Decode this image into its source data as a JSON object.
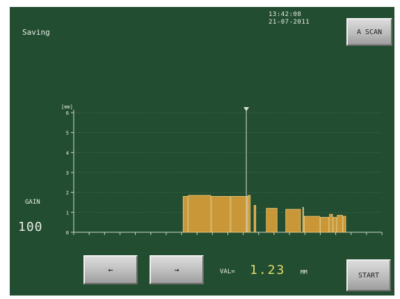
{
  "status": "Saving",
  "clock": {
    "time": "13:42:08",
    "date": "21-07-2011"
  },
  "buttons": {
    "ascan": "A SCAN",
    "start": "START",
    "left_arrow": "←",
    "right_arrow": "→"
  },
  "gain": {
    "label": "GAIN",
    "value": "100"
  },
  "reading": {
    "label": "VAL=",
    "value": "1.23",
    "unit": "MM"
  },
  "icons": {
    "cursor": "cursor-marker-icon"
  },
  "colors": {
    "screen_bg": "#234d31",
    "bar_fill": "#c99638",
    "bar_edge": "#f0cf7c",
    "text": "#e9eee7",
    "value_text": "#e3dc68"
  },
  "chart_data": {
    "type": "bar",
    "ylabel": "[mm]",
    "ylim": [
      0,
      6
    ],
    "yticks": [
      "0",
      "1",
      "2",
      "3",
      "4",
      "5",
      "6"
    ],
    "xlim": [
      0,
      100
    ],
    "grid": true,
    "cursor_x": 56,
    "segments": [
      {
        "x0": 35.5,
        "x1": 37.2,
        "value": 1.8
      },
      {
        "x0": 37.2,
        "x1": 44.7,
        "value": 1.85
      },
      {
        "x0": 44.7,
        "x1": 51.0,
        "value": 1.8
      },
      {
        "x0": 51.0,
        "x1": 56.5,
        "value": 1.8
      },
      {
        "x0": 56.5,
        "x1": 57.5,
        "value": 1.85
      },
      {
        "x0": 58.5,
        "x1": 59.3,
        "value": 1.35
      },
      {
        "x0": 62.5,
        "x1": 66.2,
        "value": 1.2
      },
      {
        "x0": 68.8,
        "x1": 73.8,
        "value": 1.15
      },
      {
        "x0": 74.3,
        "x1": 74.8,
        "value": 1.25
      },
      {
        "x0": 74.8,
        "x1": 80.0,
        "value": 0.8
      },
      {
        "x0": 80.0,
        "x1": 83.0,
        "value": 0.75
      },
      {
        "x0": 83.0,
        "x1": 84.2,
        "value": 0.9
      },
      {
        "x0": 84.2,
        "x1": 85.5,
        "value": 0.75
      },
      {
        "x0": 85.5,
        "x1": 87.5,
        "value": 0.85
      },
      {
        "x0": 87.5,
        "x1": 88.5,
        "value": 0.8
      }
    ]
  }
}
